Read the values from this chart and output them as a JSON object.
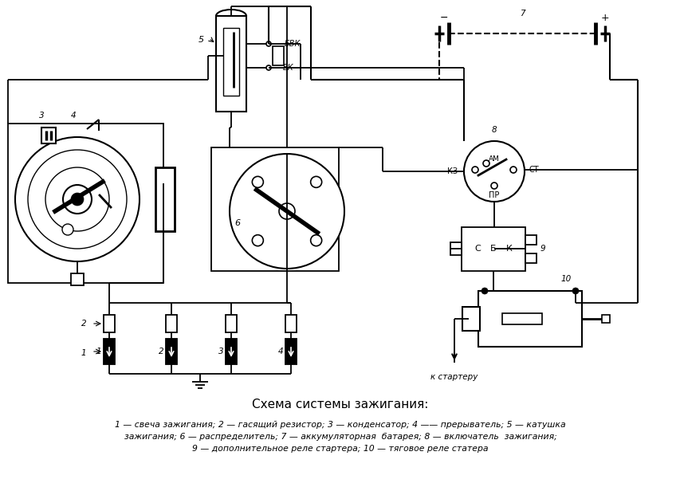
{
  "title": "Схема системы зажигания:",
  "caption_line1": "1 — свеча зажигания; 2 — гасящий резистор; 3 — конденсатор; 4 —— прерыватель; 5 — катушка",
  "caption_line2": "зажигания; 6 — распределитель; 7 — аккумуляторная  батарея; 8 — включатель  зажигания;",
  "caption_line3": "9 — дополнительное реле стартера; 10 — тяговое реле статера",
  "bg_color": "#ffffff",
  "line_color": "#000000",
  "fig_width": 8.54,
  "fig_height": 6.11
}
